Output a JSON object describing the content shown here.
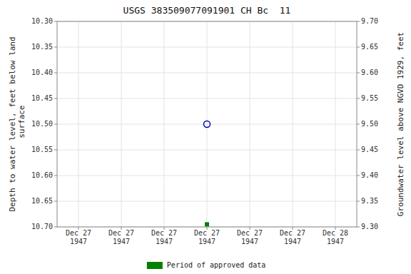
{
  "chart_data": {
    "type": "scatter",
    "title": "USGS 383509077091901 CH Bc  11",
    "y_label": "Depth to water level, feet below land\n surface",
    "y2_label": "Groundwater level above NGVD 1929, feet",
    "categories": [
      "Dec 27\n1947",
      "Dec 27\n1947",
      "Dec 27\n1947",
      "Dec 27\n1947",
      "Dec 27\n1947",
      "Dec 27\n1947",
      "Dec 28\n1947"
    ],
    "series": [
      {
        "color": "#0000bb",
        "marker": "open-circle",
        "line_style": "none",
        "values": [
          null,
          null,
          null,
          10.5,
          null,
          null,
          null
        ]
      },
      {
        "name": "Period of approved data",
        "color": "#008000",
        "marker": "square",
        "line_style": "none",
        "values": [
          null,
          null,
          null,
          10.695,
          null,
          null,
          null
        ]
      }
    ],
    "ylim": [
      10.7,
      10.3
    ],
    "yticks": [
      {
        "value": 10.3,
        "label": "10.30"
      },
      10.35,
      {
        "value": 10.4,
        "label": "10.40"
      },
      10.45,
      {
        "value": 10.5,
        "label": "10.50"
      },
      10.55,
      {
        "value": 10.6,
        "label": "10.60"
      },
      10.65,
      {
        "value": 10.7,
        "label": "10.70"
      }
    ],
    "y2lim": [
      9.3,
      9.7
    ],
    "y2ticks": [
      {
        "value": 9.7,
        "label": "9.70"
      },
      9.65,
      {
        "value": 9.6,
        "label": "9.60"
      },
      9.55,
      {
        "value": 9.5,
        "label": "9.50"
      },
      9.45,
      {
        "value": 9.4,
        "label": "9.40"
      },
      9.35,
      {
        "value": 9.3,
        "label": "9.30"
      }
    ],
    "grid": true,
    "legend": "bottom"
  }
}
